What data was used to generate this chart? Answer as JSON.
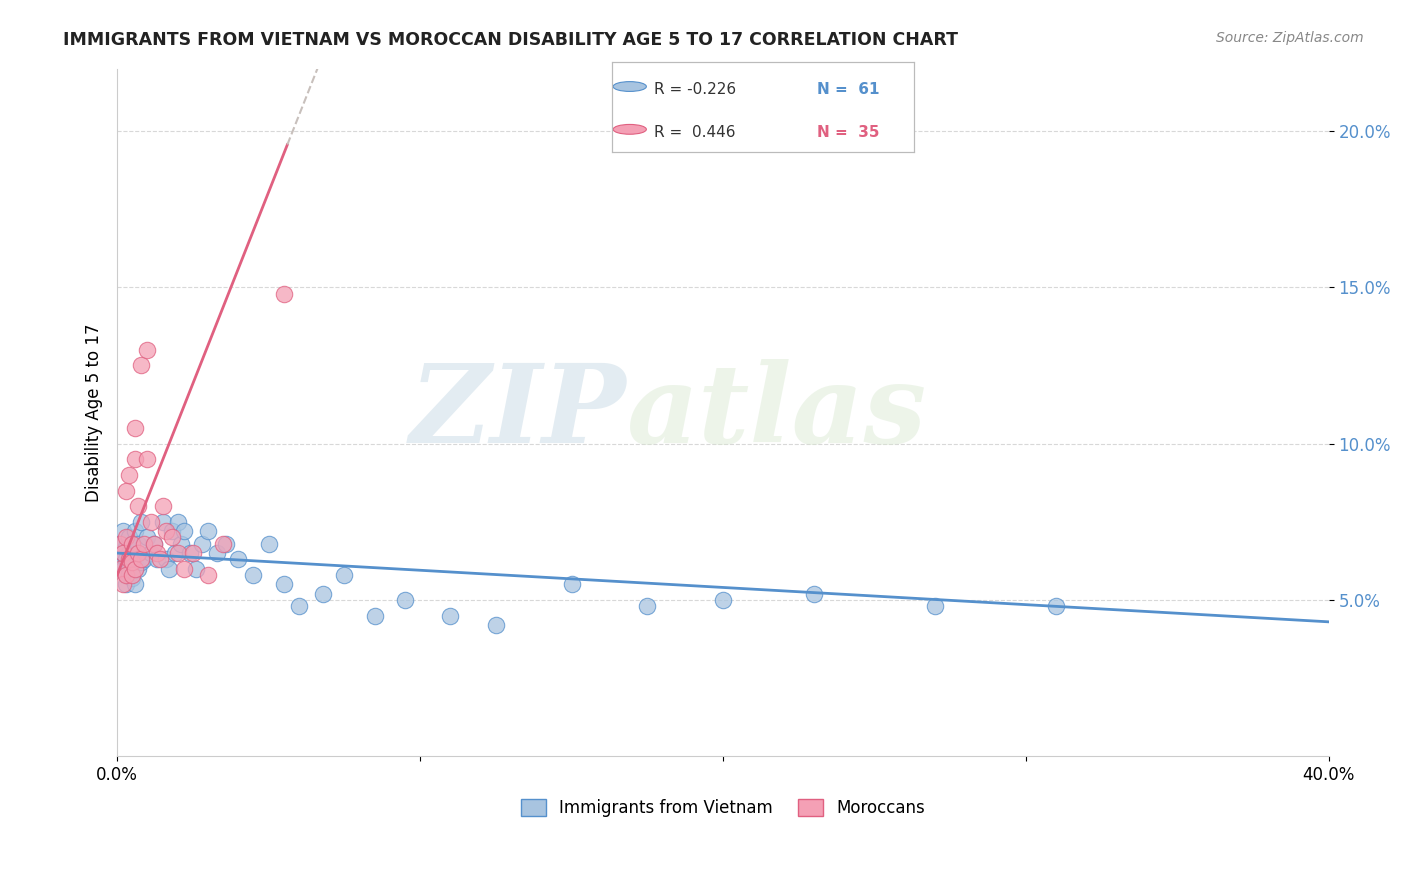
{
  "title": "IMMIGRANTS FROM VIETNAM VS MOROCCAN DISABILITY AGE 5 TO 17 CORRELATION CHART",
  "source": "Source: ZipAtlas.com",
  "ylabel": "Disability Age 5 to 17",
  "legend_vietnam": "Immigrants from Vietnam",
  "legend_morocco": "Moroccans",
  "legend_r_vietnam": "R = -0.226",
  "legend_n_vietnam": "N =  61",
  "legend_r_morocco": "R =  0.446",
  "legend_n_morocco": "N =  35",
  "xlim": [
    0,
    0.4
  ],
  "ylim": [
    0,
    0.22
  ],
  "yticks": [
    0.05,
    0.1,
    0.15,
    0.2
  ],
  "ytick_labels": [
    "5.0%",
    "10.0%",
    "15.0%",
    "20.0%"
  ],
  "xticks": [
    0.0,
    0.1,
    0.2,
    0.3,
    0.4
  ],
  "color_vietnam": "#a8c4e0",
  "color_morocco": "#f4a0b5",
  "color_trend_vietnam": "#5590cc",
  "color_trend_morocco": "#e06080",
  "color_dashed": "#c8c0bc",
  "watermark_zip": "ZIP",
  "watermark_atlas": "atlas",
  "vietnam_x": [
    0.001,
    0.001,
    0.002,
    0.002,
    0.002,
    0.003,
    0.003,
    0.003,
    0.003,
    0.004,
    0.004,
    0.004,
    0.004,
    0.005,
    0.005,
    0.005,
    0.005,
    0.006,
    0.006,
    0.006,
    0.007,
    0.007,
    0.007,
    0.008,
    0.008,
    0.009,
    0.01,
    0.011,
    0.012,
    0.013,
    0.015,
    0.016,
    0.017,
    0.018,
    0.019,
    0.02,
    0.021,
    0.022,
    0.024,
    0.026,
    0.028,
    0.03,
    0.033,
    0.036,
    0.04,
    0.045,
    0.05,
    0.055,
    0.06,
    0.068,
    0.075,
    0.085,
    0.095,
    0.11,
    0.125,
    0.15,
    0.175,
    0.2,
    0.23,
    0.27,
    0.31
  ],
  "vietnam_y": [
    0.068,
    0.062,
    0.065,
    0.06,
    0.072,
    0.058,
    0.063,
    0.067,
    0.055,
    0.06,
    0.07,
    0.065,
    0.058,
    0.063,
    0.057,
    0.068,
    0.062,
    0.06,
    0.055,
    0.072,
    0.065,
    0.06,
    0.068,
    0.062,
    0.075,
    0.063,
    0.07,
    0.065,
    0.068,
    0.063,
    0.075,
    0.063,
    0.06,
    0.072,
    0.065,
    0.075,
    0.068,
    0.072,
    0.065,
    0.06,
    0.068,
    0.072,
    0.065,
    0.068,
    0.063,
    0.058,
    0.068,
    0.055,
    0.048,
    0.052,
    0.058,
    0.045,
    0.05,
    0.045,
    0.042,
    0.055,
    0.048,
    0.05,
    0.052,
    0.048,
    0.048
  ],
  "morocco_x": [
    0.001,
    0.001,
    0.002,
    0.002,
    0.003,
    0.003,
    0.003,
    0.004,
    0.004,
    0.005,
    0.005,
    0.005,
    0.006,
    0.006,
    0.006,
    0.007,
    0.007,
    0.008,
    0.008,
    0.009,
    0.01,
    0.01,
    0.011,
    0.012,
    0.013,
    0.014,
    0.015,
    0.016,
    0.018,
    0.02,
    0.022,
    0.025,
    0.03,
    0.035,
    0.055
  ],
  "morocco_y": [
    0.068,
    0.06,
    0.055,
    0.065,
    0.058,
    0.085,
    0.07,
    0.063,
    0.09,
    0.068,
    0.058,
    0.062,
    0.095,
    0.06,
    0.105,
    0.08,
    0.065,
    0.063,
    0.125,
    0.068,
    0.095,
    0.13,
    0.075,
    0.068,
    0.065,
    0.063,
    0.08,
    0.072,
    0.07,
    0.065,
    0.06,
    0.065,
    0.058,
    0.068,
    0.148
  ],
  "trend_vietnam_start_y": 0.065,
  "trend_vietnam_end_y": 0.043,
  "trend_morocco_start_y": 0.058,
  "trend_morocco_slope": 2.45
}
